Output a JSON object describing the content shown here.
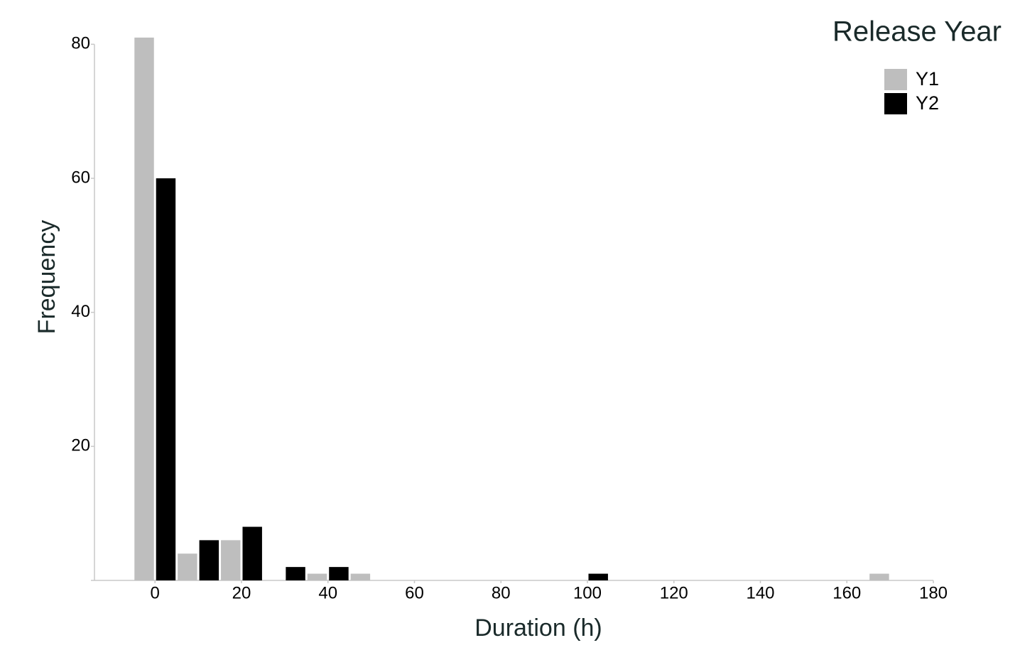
{
  "chart_data": {
    "type": "bar",
    "x_label": "Duration (h)",
    "y_label": "Frequency",
    "legend_title": "Release Year",
    "x": [
      0,
      10,
      20,
      30,
      40,
      50,
      100,
      170
    ],
    "series": [
      {
        "name": "Y1",
        "color": "#bebebe",
        "values": [
          81,
          4,
          6,
          0,
          1,
          1,
          0,
          1
        ]
      },
      {
        "name": "Y2",
        "color": "#000000",
        "values": [
          60,
          6,
          8,
          2,
          2,
          0,
          1,
          0
        ]
      }
    ],
    "xlim": [
      -14,
      180
    ],
    "xticks": [
      0,
      20,
      40,
      60,
      80,
      100,
      120,
      140,
      160,
      180
    ],
    "ylim": [
      0,
      84
    ],
    "yticks": [
      20,
      40,
      60,
      80
    ],
    "grid": false,
    "legend": "upper right"
  }
}
